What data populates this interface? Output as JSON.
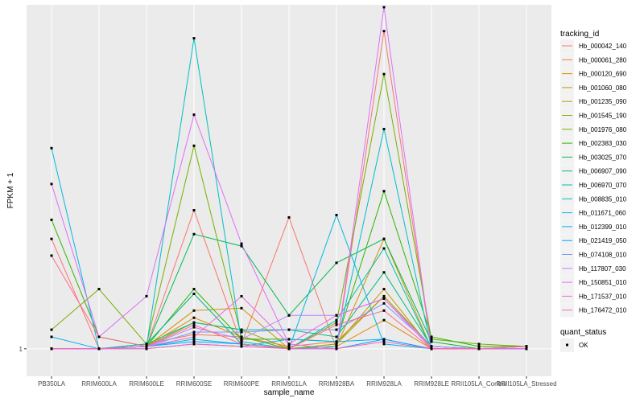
{
  "chart_data": {
    "type": "line",
    "xlabel": "sample_name",
    "ylabel": "FPKM + 1",
    "y_tick_labels": [
      "1"
    ],
    "y_ticks": [
      1
    ],
    "ylim": [
      -0.15,
      15.4
    ],
    "grid": true,
    "legend_position": "right",
    "categories": [
      "PB350LA",
      "RRIM600LA",
      "RRIM600LE",
      "RRIM600SE",
      "RRIM600PE",
      "RRIM901LA",
      "RRIM928BA",
      "RRIM928LA",
      "RRIM928LE",
      "RRII105LA_Control",
      "RRII105LA_Stressed"
    ],
    "legend_title": "tracking_id",
    "series": [
      {
        "name": "Hb_000042_140",
        "color": "#F8766D",
        "values": [
          5.6,
          1,
          1.1,
          6.8,
          1.2,
          6.5,
          1,
          14.3,
          1,
          1,
          1.1
        ]
      },
      {
        "name": "Hb_000061_280",
        "color": "#EE8044",
        "values": [
          1,
          1,
          1.2,
          1.6,
          1.5,
          1.1,
          1.3,
          3.2,
          1.1,
          1,
          1
        ]
      },
      {
        "name": "Hb_000120_690",
        "color": "#E18A00",
        "values": [
          1,
          1,
          1.1,
          2.3,
          1.5,
          1,
          1.1,
          2.2,
          1,
          1,
          1
        ]
      },
      {
        "name": "Hb_001060_080",
        "color": "#CF9400",
        "values": [
          1,
          1,
          1.1,
          2.6,
          2.7,
          1,
          1.1,
          5.6,
          1,
          1,
          1
        ]
      },
      {
        "name": "Hb_001235_090",
        "color": "#B89E00",
        "values": [
          1,
          1,
          1.2,
          3.3,
          1.2,
          1,
          1.2,
          3.5,
          1,
          1,
          1
        ]
      },
      {
        "name": "Hb_001545_190",
        "color": "#9DA700",
        "values": [
          1,
          1,
          1.1,
          2.1,
          1.8,
          1,
          1.2,
          3.2,
          1.1,
          1,
          1
        ]
      },
      {
        "name": "Hb_001976_080",
        "color": "#77AF00",
        "values": [
          1.8,
          3.5,
          1.2,
          9.5,
          1.5,
          1,
          2.1,
          12.5,
          1.4,
          1.2,
          1.1
        ]
      },
      {
        "name": "Hb_002383_030",
        "color": "#2EB600",
        "values": [
          6.4,
          1.5,
          1.1,
          3.5,
          1.4,
          1.4,
          1.3,
          7.6,
          1.5,
          1.1,
          1.1
        ]
      },
      {
        "name": "Hb_003025_070",
        "color": "#00BB4E",
        "values": [
          1,
          1,
          1.1,
          5.8,
          5.3,
          2.4,
          4.6,
          5.6,
          1.3,
          1,
          1
        ]
      },
      {
        "name": "Hb_006907_090",
        "color": "#00BE80",
        "values": [
          1,
          1,
          1.2,
          2.1,
          1.8,
          1.8,
          1.5,
          4.2,
          1.1,
          1,
          1
        ]
      },
      {
        "name": "Hb_006970_070",
        "color": "#00C0A7",
        "values": [
          1,
          1,
          1.2,
          3.3,
          1.2,
          1,
          2.2,
          5.2,
          1,
          1,
          1
        ]
      },
      {
        "name": "Hb_008835_010",
        "color": "#00BFC4",
        "values": [
          1,
          1,
          1.1,
          14.0,
          1.3,
          1,
          1.1,
          10.2,
          1,
          1,
          1
        ]
      },
      {
        "name": "Hb_011671_060",
        "color": "#00B9E2",
        "values": [
          9.4,
          1,
          1.1,
          1.4,
          1.2,
          1,
          6.6,
          1.2,
          1,
          1,
          1
        ]
      },
      {
        "name": "Hb_012399_010",
        "color": "#00B0F6",
        "values": [
          1.5,
          1,
          1,
          1.2,
          1.1,
          1.4,
          1.3,
          1.4,
          1,
          1,
          1
        ]
      },
      {
        "name": "Hb_021419_050",
        "color": "#00A5FF",
        "values": [
          1,
          1,
          1.1,
          1.3,
          1.2,
          1,
          1,
          1.4,
          1,
          1,
          1
        ]
      },
      {
        "name": "Hb_074108_010",
        "color": "#7E96FF",
        "values": [
          1,
          1,
          1.1,
          1.7,
          1.7,
          1.8,
          1.8,
          2.9,
          1.1,
          1,
          1
        ]
      },
      {
        "name": "Hb_117807_030",
        "color": "#B983FF",
        "values": [
          1,
          1,
          1.1,
          1.9,
          1.4,
          2.4,
          2.4,
          3.1,
          1.1,
          1,
          1
        ]
      },
      {
        "name": "Hb_150851_010",
        "color": "#DE70F9",
        "values": [
          7.9,
          1.5,
          3.2,
          10.8,
          5.4,
          1.2,
          1,
          15.3,
          1,
          1,
          1.1
        ]
      },
      {
        "name": "Hb_171537_010",
        "color": "#F365E5",
        "values": [
          1,
          1,
          1.1,
          1.5,
          3.2,
          1.2,
          2.4,
          3.1,
          1,
          1,
          1
        ]
      },
      {
        "name": "Hb_176472_010",
        "color": "#FF62BC",
        "values": [
          1,
          1,
          1,
          1.2,
          1.1,
          1,
          1,
          1.3,
          1,
          1,
          1.1
        ]
      },
      {
        "name": "",
        "color": "#FF6B94",
        "values": [
          4.9,
          1.5,
          1.1,
          2.0,
          1.2,
          1,
          2.0,
          2.6,
          1,
          1,
          1.1
        ]
      }
    ],
    "legend2_title": "quant_status",
    "legend2_items": [
      {
        "label": "OK"
      }
    ]
  }
}
